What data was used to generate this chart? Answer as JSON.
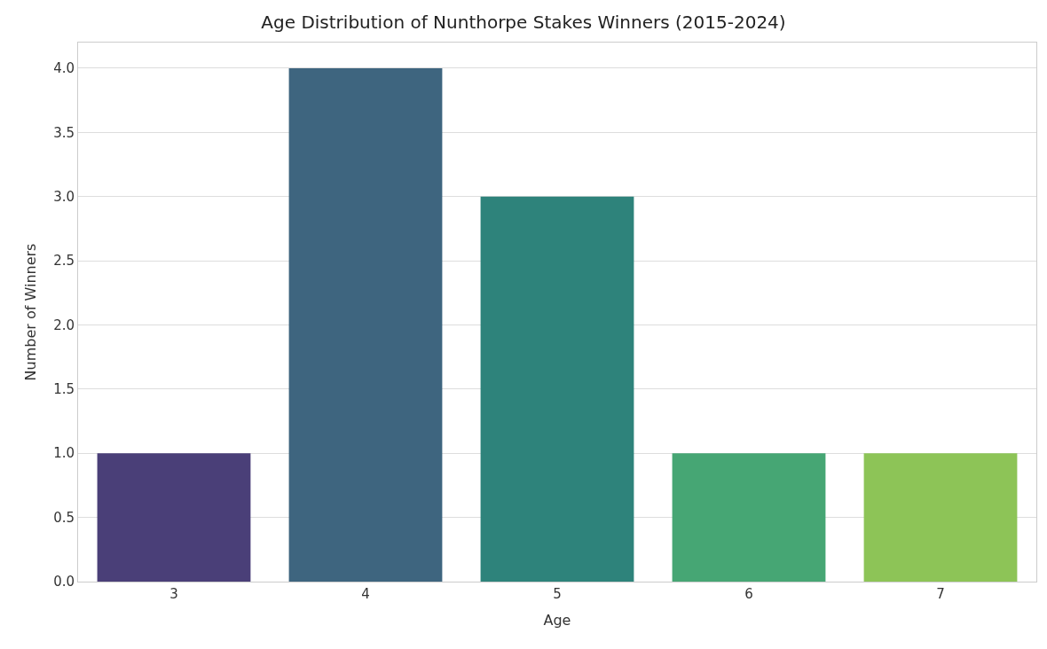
{
  "chart_data": {
    "type": "bar",
    "title": "Age Distribution of Nunthorpe Stakes Winners (2015-2024)",
    "xlabel": "Age",
    "ylabel": "Number of Winners",
    "categories": [
      "3",
      "4",
      "5",
      "6",
      "7"
    ],
    "values": [
      1,
      4,
      3,
      1,
      1
    ],
    "colors": [
      "#4a3f78",
      "#3e657f",
      "#2e837b",
      "#46a674",
      "#8dc457"
    ],
    "ylim": [
      0,
      4.2
    ],
    "yticks": [
      {
        "value": 0,
        "label": "0.0"
      },
      {
        "value": 0.5,
        "label": "0.5"
      },
      {
        "value": 1,
        "label": "1.0"
      },
      {
        "value": 1.5,
        "label": "1.5"
      },
      {
        "value": 2,
        "label": "2.0"
      },
      {
        "value": 2.5,
        "label": "2.5"
      },
      {
        "value": 3,
        "label": "3.0"
      },
      {
        "value": 3.5,
        "label": "3.5"
      },
      {
        "value": 4,
        "label": "4.0"
      }
    ],
    "grid": "y"
  }
}
